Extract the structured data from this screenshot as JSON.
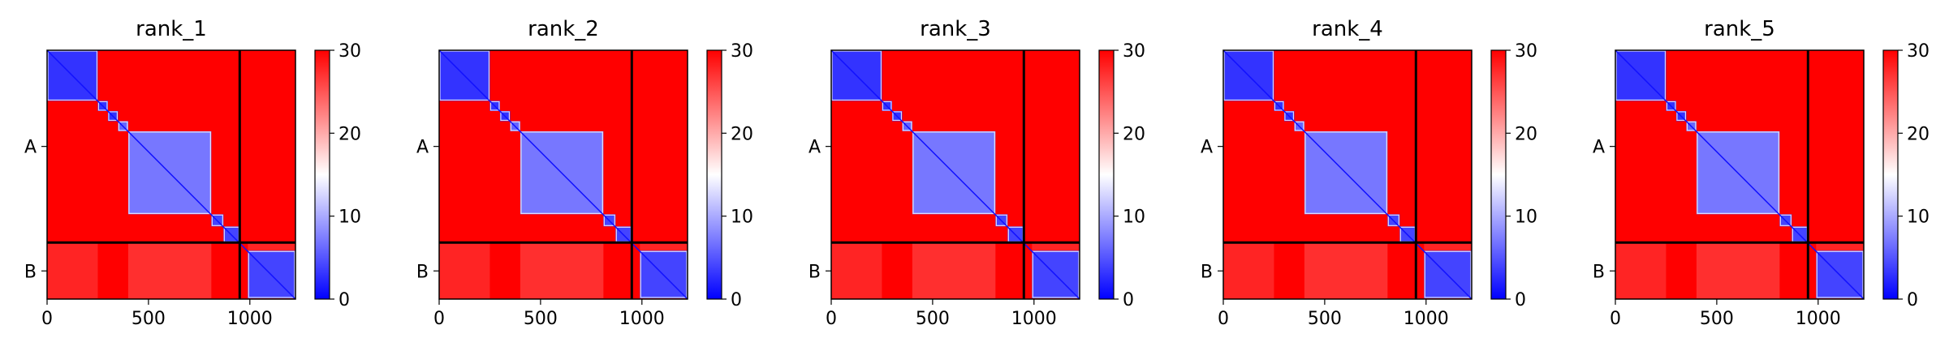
{
  "figure": {
    "panel_titles": [
      "rank_1",
      "rank_2",
      "rank_3",
      "rank_4",
      "rank_5"
    ]
  },
  "chart_data": {
    "type": "heatmap",
    "description_of_each_panel": "predicted aligned error matrix, residues x residues",
    "x_ticks": [
      0,
      500,
      1000
    ],
    "x_tick_labels": [
      "0",
      "500",
      "1000"
    ],
    "y_tick_labels": [
      "A",
      "B"
    ],
    "y_tick_positions": [
      475,
      1090
    ],
    "xlim": [
      0,
      1225
    ],
    "ylim": [
      1225,
      0
    ],
    "chain_boundary": 950,
    "chains": [
      {
        "name": "A",
        "start": 0,
        "end": 950
      },
      {
        "name": "B",
        "start": 950,
        "end": 1225
      }
    ],
    "colorbar": {
      "cmap": "bwr",
      "vmin": 0,
      "vmax": 30,
      "ticks": [
        0,
        10,
        20,
        30
      ],
      "tick_labels": [
        "0",
        "10",
        "20",
        "30"
      ],
      "colors": {
        "low": "#0000ff",
        "mid": "#ffffff",
        "high": "#ff0000"
      }
    },
    "low_error_blocks": [
      {
        "start": 0,
        "end": 250,
        "value": 3
      },
      {
        "start": 250,
        "end": 300,
        "value": 3
      },
      {
        "start": 300,
        "end": 350,
        "value": 3
      },
      {
        "start": 350,
        "end": 400,
        "value": 6
      },
      {
        "start": 400,
        "end": 810,
        "value": 7
      },
      {
        "start": 810,
        "end": 870,
        "value": 4
      },
      {
        "start": 870,
        "end": 950,
        "value": 4
      },
      {
        "start": 990,
        "end": 1225,
        "value": 4
      }
    ],
    "panels": [
      {
        "title": "rank_1"
      },
      {
        "title": "rank_2"
      },
      {
        "title": "rank_3"
      },
      {
        "title": "rank_4"
      },
      {
        "title": "rank_5"
      }
    ]
  }
}
